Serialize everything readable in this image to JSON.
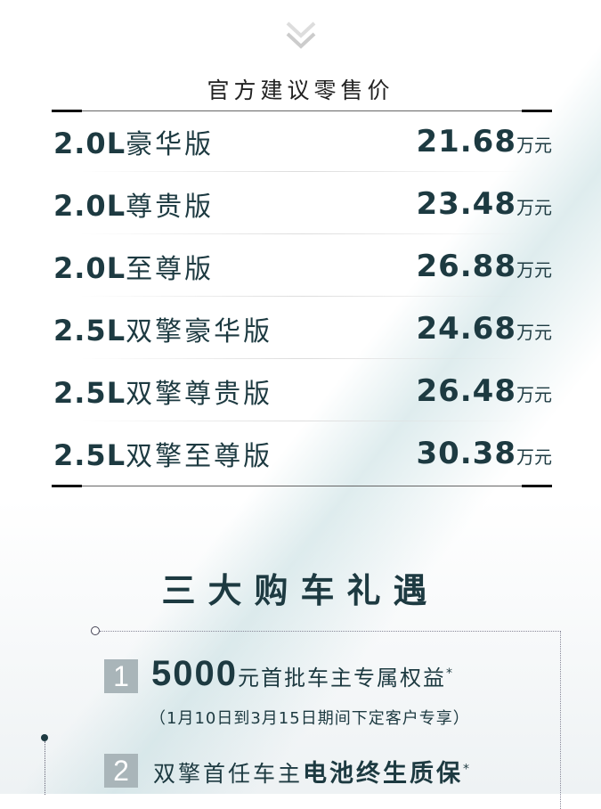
{
  "header": {
    "title": "官方建议零售价",
    "scroll_icon": "double-chevron-down-icon"
  },
  "prices": [
    {
      "engine": "2.0L",
      "trim": "豪华版",
      "price": "21.68",
      "unit": "万元"
    },
    {
      "engine": "2.0L",
      "trim": "尊贵版",
      "price": "23.48",
      "unit": "万元"
    },
    {
      "engine": "2.0L",
      "trim": "至尊版",
      "price": "26.88",
      "unit": "万元"
    },
    {
      "engine": "2.5L",
      "trim": "双擎豪华版",
      "price": "24.68",
      "unit": "万元"
    },
    {
      "engine": "2.5L",
      "trim": "双擎尊贵版",
      "price": "26.48",
      "unit": "万元"
    },
    {
      "engine": "2.5L",
      "trim": "双擎至尊版",
      "price": "30.38",
      "unit": "万元"
    }
  ],
  "gifts": {
    "title": "三大购车礼遇",
    "items": [
      {
        "num": "1",
        "highlight": "5000",
        "text": "元首批车主专属权益",
        "mark": "*",
        "note": "（1月10日到3月15日期间下定客户专享）"
      },
      {
        "num": "2",
        "text": "双擎首任车主",
        "highlight": "电池终生质保",
        "mark": "*"
      }
    ]
  },
  "colors": {
    "text": "#1d3a41",
    "badge": "#a9b5b9"
  }
}
